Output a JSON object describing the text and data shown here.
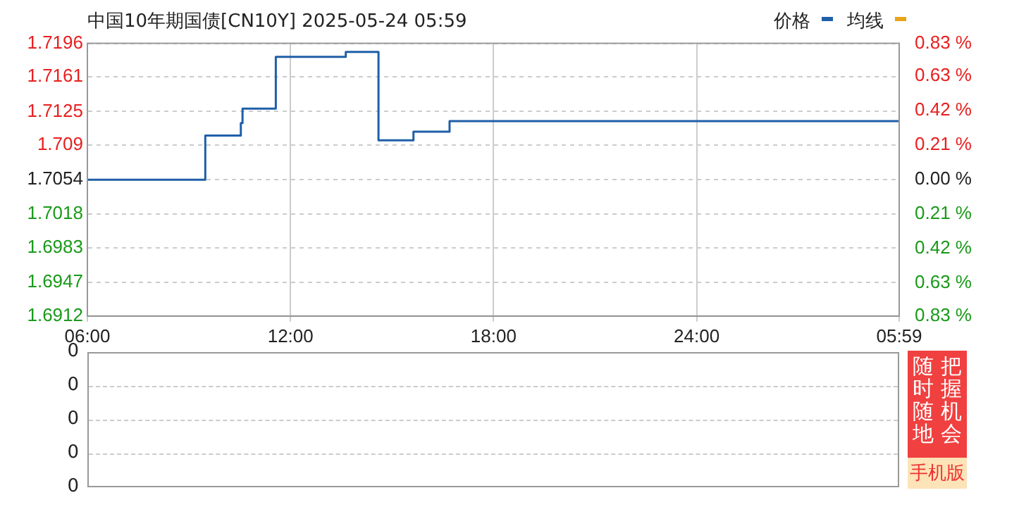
{
  "chart_data": [
    {
      "type": "step",
      "title": "中国10年期国债[CN10Y]  2025-05-24  05:59",
      "x": [
        "2025-05-23T06:00",
        "2025-05-23T09:29",
        "2025-05-23T10:32",
        "2025-05-23T10:35",
        "2025-05-23T11:34",
        "2025-05-23T13:38",
        "2025-05-23T14:36",
        "2025-05-23T15:38",
        "2025-05-23T16:42",
        "2025-05-24T05:59"
      ],
      "series": [
        {
          "name": "价格",
          "color": "#1f5fa8",
          "values": [
            1.7054,
            1.71,
            1.7113,
            1.7128,
            1.7182,
            1.7187,
            1.7095,
            1.7104,
            1.7115,
            1.7115
          ]
        },
        {
          "name": "均线",
          "color": "#e8a317",
          "values": [
            null,
            null,
            null,
            null,
            null,
            null,
            null,
            null,
            null,
            null
          ]
        }
      ],
      "xlim": [
        "2025-05-23T06:00",
        "2025-05-24T05:59"
      ],
      "xticks": [
        {
          "value": "2025-05-23T06:00",
          "label": "06:00"
        },
        {
          "value": "2025-05-23T12:00",
          "label": "12:00"
        },
        {
          "value": "2025-05-23T18:00",
          "label": "18:00"
        },
        {
          "value": "2025-05-24T00:00",
          "label": "24:00"
        },
        {
          "value": "2025-05-24T05:59",
          "label": "05:59"
        }
      ],
      "ylim": [
        1.6912,
        1.7196
      ],
      "yticks": [
        1.6912,
        1.6947,
        1.6983,
        1.7018,
        1.7054,
        1.709,
        1.7125,
        1.7161,
        1.7196
      ],
      "y2lim": [
        -0.83,
        0.83
      ],
      "y2ticks": [
        {
          "value": -0.83,
          "label": "0.83 %"
        },
        {
          "value": -0.63,
          "label": "0.63 %"
        },
        {
          "value": -0.42,
          "label": "0.42 %"
        },
        {
          "value": -0.21,
          "label": "0.21 %"
        },
        {
          "value": 0,
          "label": "0.00 %"
        },
        {
          "value": 0.21,
          "label": "0.21 %"
        },
        {
          "value": 0.42,
          "label": "0.42 %"
        },
        {
          "value": 0.63,
          "label": "0.63 %"
        },
        {
          "value": 0.83,
          "label": "0.83 %"
        }
      ],
      "grid": true,
      "legend": "top right",
      "marker": "none",
      "annotations": [
        "把握机会",
        "随时随地",
        "手机版"
      ]
    },
    {
      "type": "other",
      "annotations": [
        "0",
        "0",
        "0",
        "0",
        "0"
      ]
    }
  ]
}
